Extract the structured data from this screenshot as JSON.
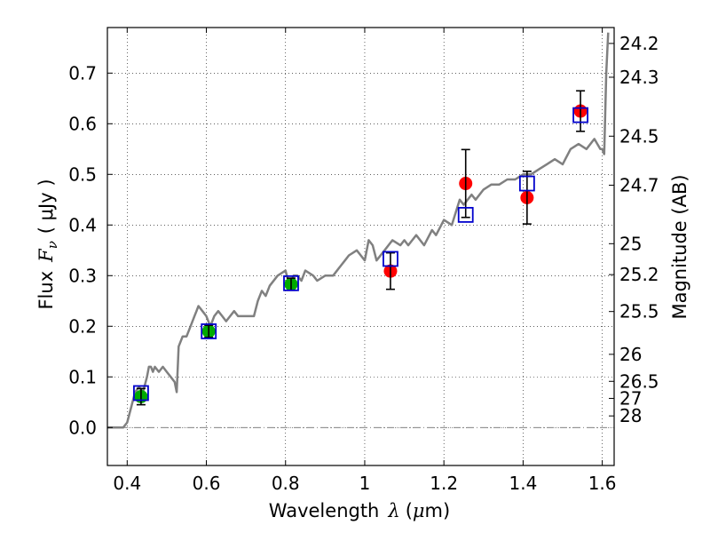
{
  "chart_data": {
    "type": "scatter",
    "xlabel": {
      "prefix": "Wavelength",
      "symbol": "λ",
      "units_open": "(",
      "units_mu": "μ",
      "units_rest": "m)"
    },
    "ylabel": {
      "prefix": "Flux",
      "symbol": "F",
      "subscript": "ν",
      "units": "( μJy )"
    },
    "ylabel_right": "Magnitude (AB)",
    "xlim": [
      0.35,
      1.63
    ],
    "ylim": [
      -0.075,
      0.79
    ],
    "grid": true,
    "x_ticks": [
      {
        "value": 0.4,
        "label": "0.4"
      },
      {
        "value": 0.6,
        "label": "0.6"
      },
      {
        "value": 0.8,
        "label": "0.8"
      },
      {
        "value": 1.0,
        "label": "1"
      },
      {
        "value": 1.2,
        "label": "1.2"
      },
      {
        "value": 1.4,
        "label": "1.4"
      },
      {
        "value": 1.6,
        "label": "1.6"
      }
    ],
    "y_ticks": [
      {
        "value": 0.0,
        "label": "0.0"
      },
      {
        "value": 0.1,
        "label": "0.1"
      },
      {
        "value": 0.2,
        "label": "0.2"
      },
      {
        "value": 0.3,
        "label": "0.3"
      },
      {
        "value": 0.4,
        "label": "0.4"
      },
      {
        "value": 0.5,
        "label": "0.5"
      },
      {
        "value": 0.6,
        "label": "0.6"
      },
      {
        "value": 0.7,
        "label": "0.7"
      }
    ],
    "mag_ticks": [
      {
        "mag": 24.2,
        "label": "24.2"
      },
      {
        "mag": 24.3,
        "label": "24.3"
      },
      {
        "mag": 24.5,
        "label": "24.5"
      },
      {
        "mag": 24.7,
        "label": "24.7"
      },
      {
        "mag": 25,
        "label": "25"
      },
      {
        "mag": 25.2,
        "label": "25.2"
      },
      {
        "mag": 25.5,
        "label": "25.5"
      },
      {
        "mag": 26,
        "label": "26"
      },
      {
        "mag": 26.5,
        "label": "26.5"
      },
      {
        "mag": 27,
        "label": "27"
      },
      {
        "mag": 28,
        "label": "28"
      }
    ],
    "series": [
      {
        "name": "model_sed",
        "type": "line",
        "color": "#808080",
        "x": [
          0.35,
          0.38,
          0.39,
          0.4,
          0.41,
          0.42,
          0.43,
          0.44,
          0.45,
          0.455,
          0.46,
          0.465,
          0.47,
          0.48,
          0.49,
          0.5,
          0.51,
          0.52,
          0.525,
          0.53,
          0.54,
          0.55,
          0.56,
          0.57,
          0.575,
          0.58,
          0.59,
          0.6,
          0.61,
          0.62,
          0.63,
          0.64,
          0.65,
          0.66,
          0.67,
          0.68,
          0.7,
          0.72,
          0.73,
          0.74,
          0.75,
          0.76,
          0.78,
          0.8,
          0.81,
          0.82,
          0.83,
          0.84,
          0.85,
          0.87,
          0.88,
          0.9,
          0.92,
          0.94,
          0.95,
          0.96,
          0.98,
          0.99,
          1.0,
          1.01,
          1.02,
          1.03,
          1.05,
          1.06,
          1.07,
          1.09,
          1.1,
          1.11,
          1.12,
          1.13,
          1.15,
          1.17,
          1.18,
          1.2,
          1.22,
          1.24,
          1.25,
          1.27,
          1.28,
          1.3,
          1.32,
          1.34,
          1.36,
          1.38,
          1.4,
          1.42,
          1.44,
          1.46,
          1.48,
          1.5,
          1.52,
          1.54,
          1.56,
          1.58,
          1.595,
          1.6,
          1.605,
          1.61,
          1.615
        ],
        "y": [
          0.0,
          0.0,
          0.0,
          0.01,
          0.04,
          0.07,
          0.08,
          0.07,
          0.1,
          0.12,
          0.12,
          0.11,
          0.12,
          0.11,
          0.12,
          0.11,
          0.1,
          0.09,
          0.07,
          0.16,
          0.18,
          0.18,
          0.2,
          0.22,
          0.23,
          0.24,
          0.23,
          0.22,
          0.2,
          0.22,
          0.23,
          0.22,
          0.21,
          0.22,
          0.23,
          0.22,
          0.22,
          0.22,
          0.25,
          0.27,
          0.26,
          0.28,
          0.3,
          0.31,
          0.28,
          0.3,
          0.3,
          0.29,
          0.31,
          0.3,
          0.29,
          0.3,
          0.3,
          0.32,
          0.33,
          0.34,
          0.35,
          0.34,
          0.33,
          0.37,
          0.36,
          0.33,
          0.35,
          0.36,
          0.37,
          0.36,
          0.37,
          0.36,
          0.37,
          0.38,
          0.36,
          0.39,
          0.38,
          0.41,
          0.4,
          0.45,
          0.44,
          0.46,
          0.45,
          0.47,
          0.48,
          0.48,
          0.49,
          0.49,
          0.5,
          0.5,
          0.51,
          0.52,
          0.53,
          0.52,
          0.55,
          0.56,
          0.55,
          0.57,
          0.55,
          0.55,
          0.54,
          0.7,
          0.78
        ]
      }
    ],
    "points_green": {
      "name": "optical_photometry",
      "color": "#00aa00",
      "x": [
        0.435,
        0.606,
        0.814
      ],
      "y": [
        0.061,
        0.19,
        0.283
      ],
      "yerr": [
        0.016,
        0.012,
        0.012
      ]
    },
    "points_red": {
      "name": "nir_photometry",
      "color": "#ff0000",
      "x": [
        1.065,
        1.255,
        1.41,
        1.545
      ],
      "y": [
        0.309,
        0.482,
        0.454,
        0.625
      ],
      "yerr": [
        0.036,
        0.067,
        0.052,
        0.04
      ]
    },
    "model_boxes": {
      "name": "model_bandpass_flux",
      "color": "#0000cc",
      "x": [
        0.435,
        0.606,
        0.814,
        1.065,
        1.255,
        1.41,
        1.545
      ],
      "y": [
        0.068,
        0.19,
        0.285,
        0.333,
        0.42,
        0.482,
        0.617
      ]
    }
  }
}
